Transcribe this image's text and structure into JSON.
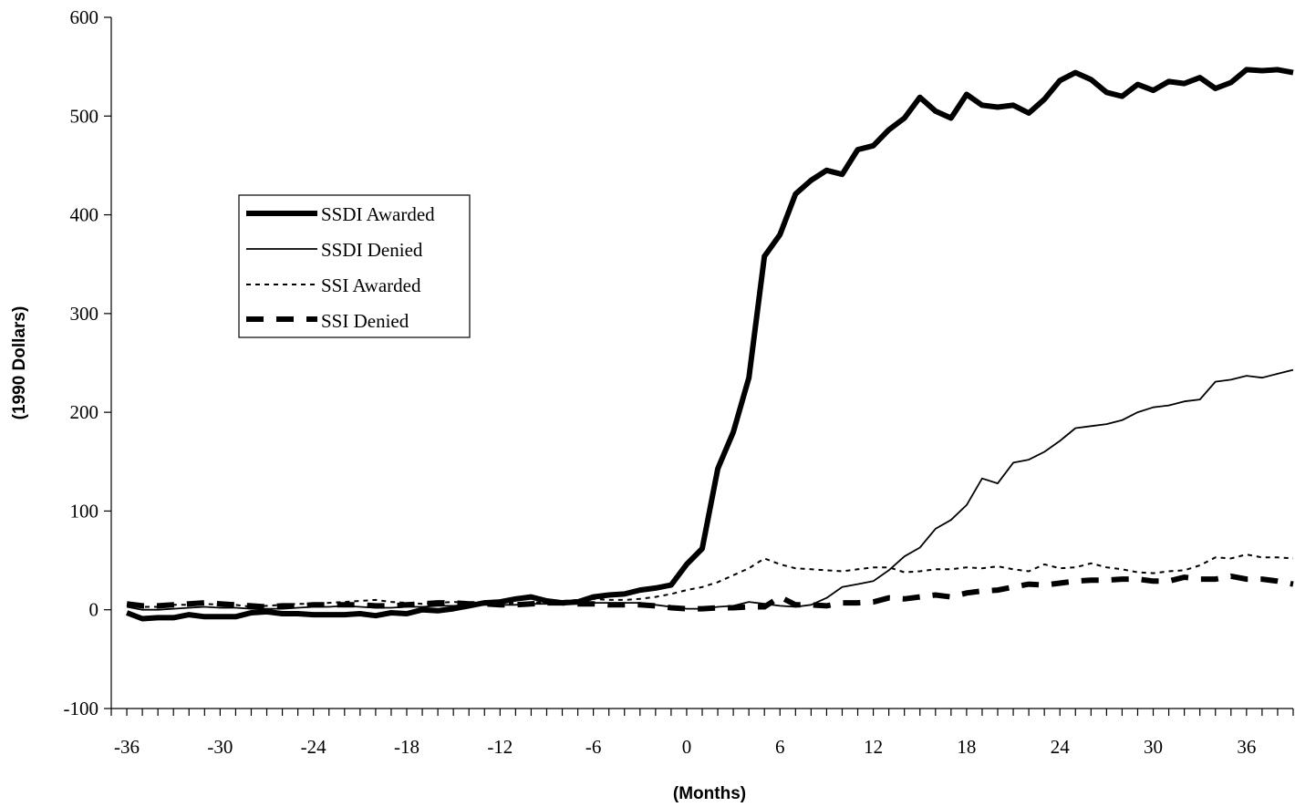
{
  "chart_data": {
    "type": "line",
    "title": "",
    "xlabel": "(Months)",
    "ylabel": "(1990 Dollars)",
    "xlim": [
      -37,
      39
    ],
    "ylim": [
      -100,
      600
    ],
    "x_ticks": [
      -36,
      -30,
      -24,
      -18,
      -12,
      -6,
      0,
      6,
      12,
      18,
      24,
      30,
      36
    ],
    "x_tick_labels": [
      "-36",
      "-30",
      "-24",
      "-18",
      "-12",
      "-6",
      "0",
      "6",
      "12",
      "18",
      "24",
      "30",
      "36"
    ],
    "y_ticks": [
      -100,
      0,
      100,
      200,
      300,
      400,
      500,
      600
    ],
    "y_tick_labels": [
      "-100",
      "0",
      "100",
      "200",
      "300",
      "400",
      "500",
      "600"
    ],
    "grid": false,
    "legend_position": "left-middle",
    "x": [
      -36,
      -35,
      -34,
      -33,
      -32,
      -31,
      -30,
      -29,
      -28,
      -27,
      -26,
      -25,
      -24,
      -23,
      -22,
      -21,
      -20,
      -19,
      -18,
      -17,
      -16,
      -15,
      -14,
      -13,
      -12,
      -11,
      -10,
      -9,
      -8,
      -7,
      -6,
      -5,
      -4,
      -3,
      -2,
      -1,
      0,
      1,
      2,
      3,
      4,
      5,
      6,
      7,
      8,
      9,
      10,
      11,
      12,
      13,
      14,
      15,
      16,
      17,
      18,
      19,
      20,
      21,
      22,
      23,
      24,
      25,
      26,
      27,
      28,
      29,
      30,
      31,
      32,
      33,
      34,
      35,
      36,
      37,
      38,
      39
    ],
    "series": [
      {
        "name": "SSDI Awarded",
        "style": "thick-solid",
        "values": [
          -3,
          -9,
          -8,
          -8,
          -5,
          -7,
          -7,
          -7,
          -3,
          -2,
          -4,
          -4,
          -5,
          -5,
          -5,
          -4,
          -6,
          -3,
          -4,
          0,
          -1,
          1,
          4,
          7,
          8,
          11,
          13,
          9,
          7,
          8,
          13,
          15,
          16,
          20,
          22,
          25,
          46,
          62,
          143,
          180,
          235,
          358,
          380,
          421,
          435,
          445,
          441,
          466,
          470,
          486,
          498,
          519,
          505,
          498,
          522,
          511,
          509,
          511,
          503,
          517,
          536,
          544,
          537,
          524,
          520,
          532,
          526,
          535,
          533,
          539,
          528,
          534,
          547,
          546,
          547,
          544
        ]
      },
      {
        "name": "SSDI Denied",
        "style": "thin-solid",
        "values": [
          3,
          0,
          0,
          1,
          2,
          3,
          2,
          2,
          1,
          1,
          1,
          2,
          3,
          3,
          4,
          3,
          2,
          2,
          3,
          3,
          4,
          4,
          5,
          5,
          5,
          5,
          6,
          6,
          6,
          6,
          7,
          7,
          7,
          7,
          5,
          3,
          1,
          1,
          3,
          4,
          8,
          6,
          4,
          3,
          5,
          12,
          23,
          26,
          29,
          40,
          54,
          63,
          82,
          91,
          106,
          133,
          128,
          149,
          152,
          160,
          171,
          184,
          186,
          188,
          192,
          200,
          205,
          207,
          211,
          213,
          231,
          233,
          237,
          235,
          239,
          243
        ]
      },
      {
        "name": "SSI Awarded",
        "style": "dotted",
        "values": [
          5,
          3,
          3,
          5,
          5,
          6,
          5,
          5,
          3,
          4,
          5,
          6,
          6,
          7,
          8,
          9,
          10,
          8,
          7,
          6,
          7,
          8,
          7,
          6,
          6,
          7,
          7,
          8,
          9,
          10,
          11,
          10,
          10,
          11,
          13,
          16,
          20,
          23,
          28,
          35,
          42,
          52,
          46,
          42,
          41,
          40,
          39,
          41,
          43,
          43,
          38,
          39,
          41,
          41,
          43,
          42,
          44,
          41,
          39,
          46,
          42,
          43,
          47,
          43,
          41,
          38,
          37,
          39,
          40,
          45,
          53,
          52,
          56,
          53,
          53,
          52
        ]
      },
      {
        "name": "SSI Denied",
        "style": "thick-dashed",
        "values": [
          6,
          4,
          4,
          5,
          6,
          7,
          6,
          5,
          4,
          3,
          4,
          4,
          5,
          5,
          5,
          5,
          4,
          4,
          5,
          6,
          7,
          7,
          6,
          6,
          5,
          5,
          6,
          7,
          7,
          6,
          6,
          5,
          5,
          5,
          4,
          2,
          1,
          1,
          2,
          2,
          3,
          3,
          13,
          5,
          5,
          4,
          7,
          7,
          8,
          12,
          11,
          13,
          15,
          13,
          17,
          19,
          20,
          23,
          26,
          25,
          27,
          29,
          30,
          30,
          31,
          31,
          29,
          29,
          33,
          31,
          31,
          34,
          31,
          31,
          29,
          26
        ]
      }
    ]
  }
}
